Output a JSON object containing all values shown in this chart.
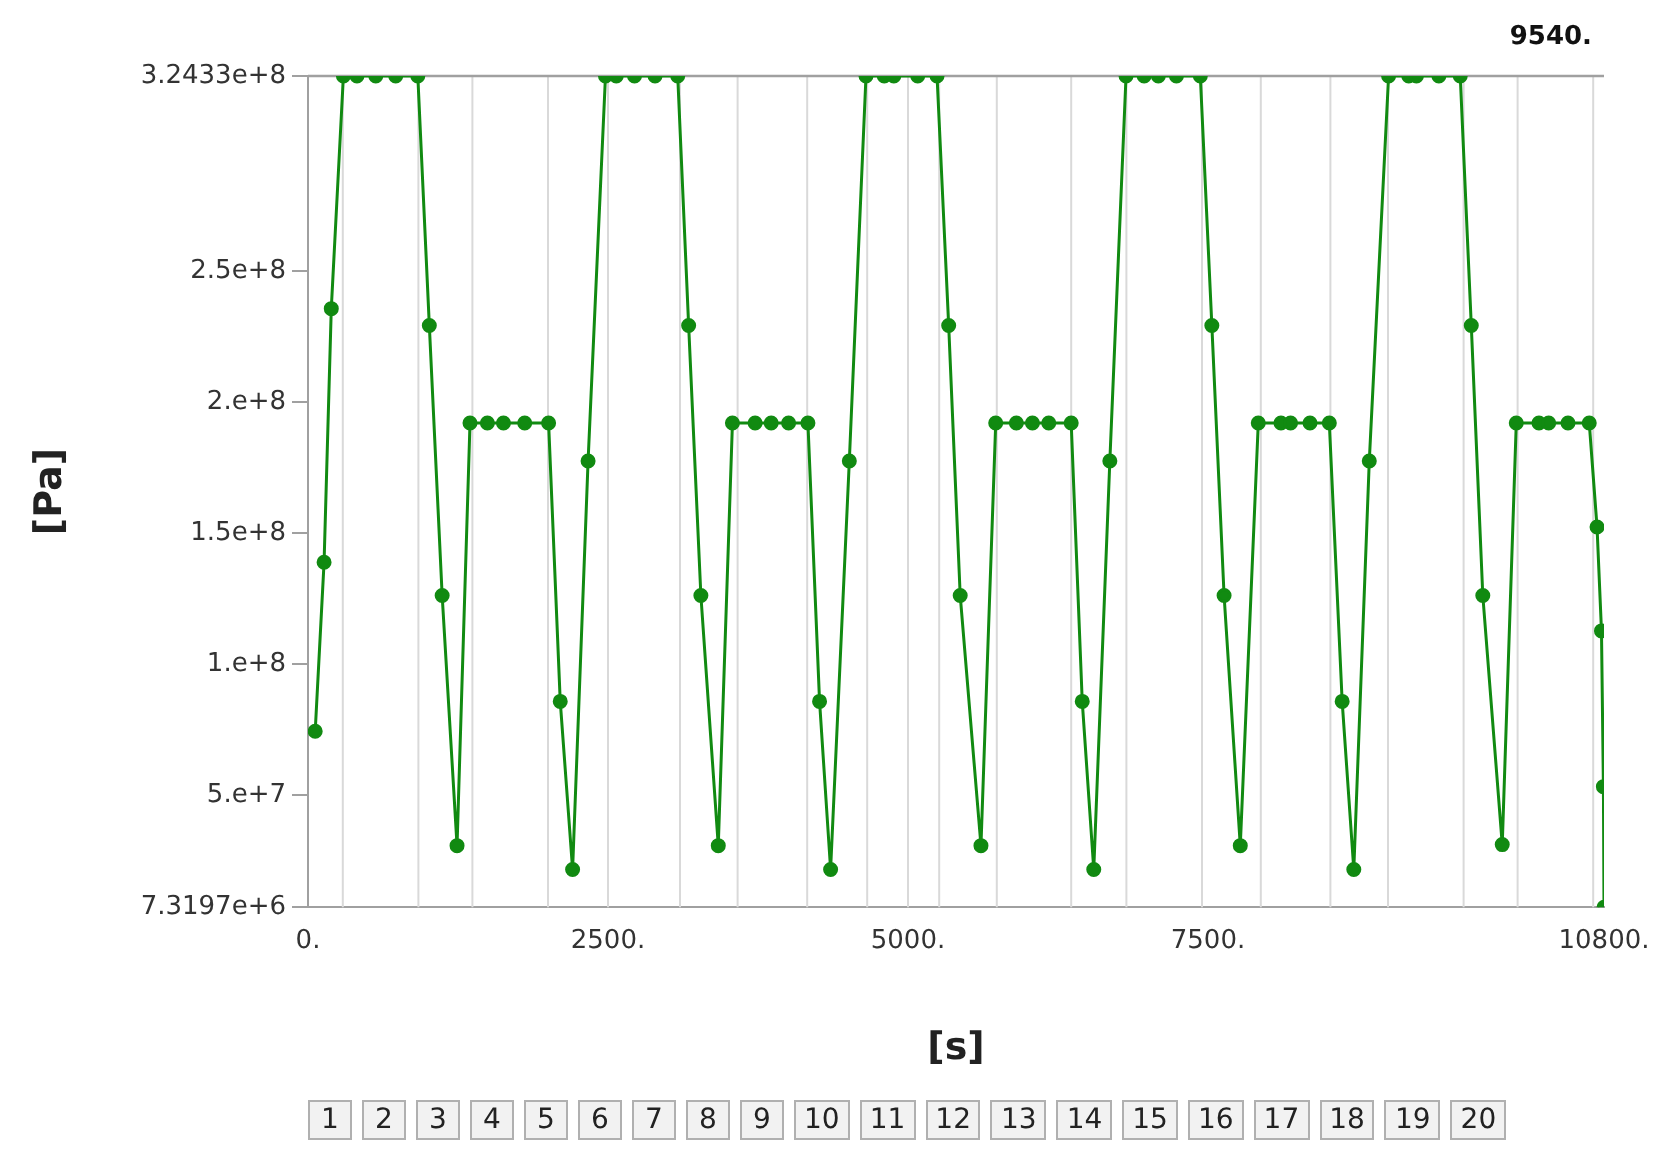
{
  "chart_data": {
    "type": "line",
    "xlabel": "[s]",
    "ylabel": "[Pa]",
    "annotations": [
      "9540.",
      "1 2 3 4 5 6 7 8 9 10 11 12 13 14 15 16 17 18 19 20"
    ],
    "xlim": [
      0,
      10800
    ],
    "ylim": [
      7319700,
      324330000
    ],
    "xticks": [
      {
        "value": 0,
        "label": "0."
      },
      {
        "value": 2500,
        "label": "2500."
      },
      {
        "value": 5000,
        "label": "5000."
      },
      {
        "value": 7500,
        "label": "7500."
      },
      {
        "value": 10800,
        "label": "10800."
      }
    ],
    "yticks": [
      {
        "value": 7319700,
        "label": "7.3197e+6"
      },
      {
        "value": 50000000,
        "label": "5.e+7"
      },
      {
        "value": 100000000,
        "label": "1.e+8"
      },
      {
        "value": 150000000,
        "label": "1.5e+8"
      },
      {
        "value": 200000000,
        "label": "2.e+8"
      },
      {
        "value": 250000000,
        "label": "2.5e+8"
      },
      {
        "value": 324330000,
        "label": "3.2433e+8"
      }
    ],
    "ref_lines": [
      {
        "axis": "x",
        "value": 290,
        "color": "#d9d9d9"
      },
      {
        "axis": "x",
        "value": 920,
        "color": "#d9d9d9"
      },
      {
        "axis": "x",
        "value": 1370,
        "color": "#d9d9d9"
      },
      {
        "axis": "x",
        "value": 2000,
        "color": "#d9d9d9"
      },
      {
        "axis": "x",
        "value": 2500,
        "color": "#d9d9d9"
      },
      {
        "axis": "x",
        "value": 3100,
        "color": "#d9d9d9"
      },
      {
        "axis": "x",
        "value": 3580,
        "color": "#d9d9d9"
      },
      {
        "axis": "x",
        "value": 4160,
        "color": "#d9d9d9"
      },
      {
        "axis": "x",
        "value": 4660,
        "color": "#d9d9d9"
      },
      {
        "axis": "x",
        "value": 5000,
        "color": "#d9d9d9"
      },
      {
        "axis": "x",
        "value": 5260,
        "color": "#d9d9d9"
      },
      {
        "axis": "x",
        "value": 5740,
        "color": "#d9d9d9"
      },
      {
        "axis": "x",
        "value": 6360,
        "color": "#d9d9d9"
      },
      {
        "axis": "x",
        "value": 6820,
        "color": "#d9d9d9"
      },
      {
        "axis": "x",
        "value": 7450,
        "color": "#d9d9d9"
      },
      {
        "axis": "x",
        "value": 7940,
        "color": "#d9d9d9"
      },
      {
        "axis": "x",
        "value": 8520,
        "color": "#d9d9d9"
      },
      {
        "axis": "x",
        "value": 9000,
        "color": "#d9d9d9"
      },
      {
        "axis": "x",
        "value": 9630,
        "color": "#d9d9d9"
      },
      {
        "axis": "x",
        "value": 10080,
        "color": "#d9d9d9"
      },
      {
        "axis": "x",
        "value": 10710,
        "color": "#d9d9d9"
      }
    ],
    "marker": "circle",
    "line_style": "solid",
    "legend": false,
    "series": [
      {
        "color": "#118a11",
        "x": [
          60,
          134,
          194,
          295,
          408,
          565,
          731,
          915,
          1011,
          1118,
          1242,
          1350,
          1495,
          1629,
          1806,
          2005,
          2102,
          2205,
          2334,
          2479,
          2569,
          2721,
          2892,
          3081,
          3172,
          3274,
          3419,
          3537,
          3726,
          3860,
          4005,
          4166,
          4263,
          4355,
          4511,
          4650,
          4802,
          4882,
          5081,
          5242,
          5339,
          5435,
          5608,
          5731,
          5903,
          6037,
          6173,
          6360,
          6452,
          6548,
          6682,
          6817,
          6968,
          7086,
          7237,
          7436,
          7532,
          7634,
          7769,
          7919,
          8108,
          8188,
          8350,
          8511,
          8618,
          8715,
          8844,
          9005,
          9173,
          9237,
          9424,
          9602,
          9694,
          9790,
          9952,
          10069,
          10258,
          10339,
          10500,
          10677,
          10742,
          10779,
          10795,
          10800
        ],
        "values": [
          74400000,
          138900000,
          235600000,
          324330000,
          324330000,
          324330000,
          324330000,
          324330000,
          229200000,
          126200000,
          30800000,
          192000000,
          192000000,
          192000000,
          192000000,
          192000000,
          85800000,
          21700000,
          177500000,
          324330000,
          324330000,
          324330000,
          324330000,
          324330000,
          229200000,
          126200000,
          30800000,
          192000000,
          192000000,
          192000000,
          192000000,
          192000000,
          85800000,
          21700000,
          177500000,
          324330000,
          324330000,
          324330000,
          324330000,
          324330000,
          229200000,
          126200000,
          30800000,
          192000000,
          192000000,
          192000000,
          192000000,
          192000000,
          85800000,
          21700000,
          177500000,
          324330000,
          324330000,
          324330000,
          324330000,
          324330000,
          229200000,
          126200000,
          30800000,
          192000000,
          192000000,
          192000000,
          192000000,
          192000000,
          85800000,
          21700000,
          177500000,
          324330000,
          324330000,
          324330000,
          324330000,
          324330000,
          229200000,
          126200000,
          31200000,
          192000000,
          192000000,
          192000000,
          192000000,
          192000000,
          152300000,
          112700000,
          53300000,
          7319700
        ]
      }
    ]
  }
}
